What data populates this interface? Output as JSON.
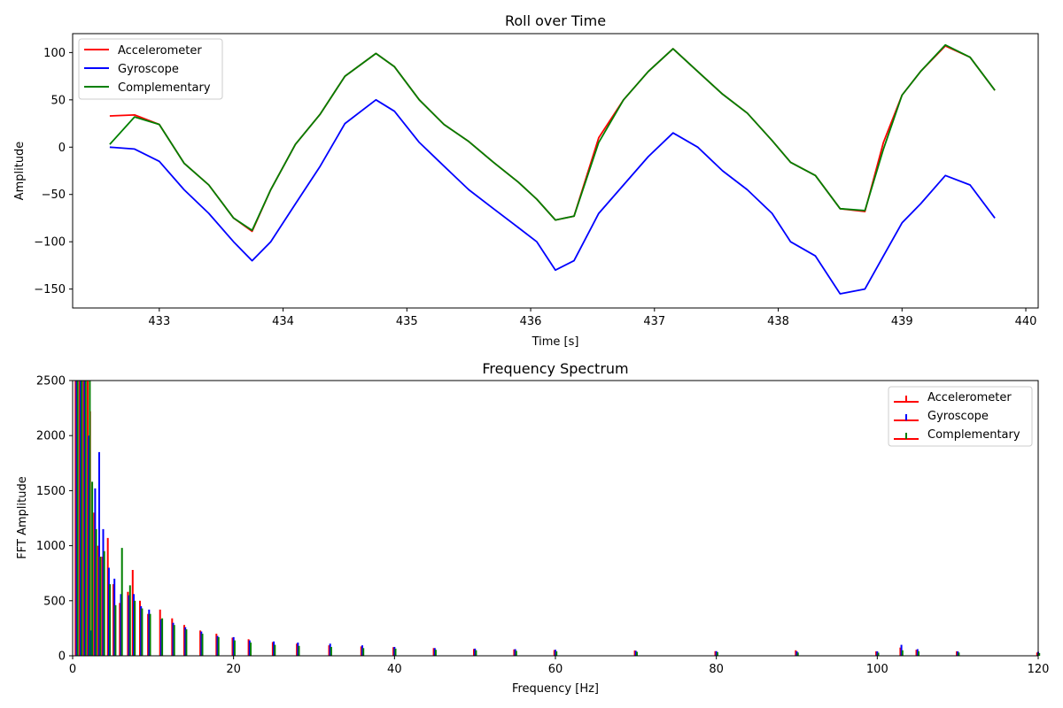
{
  "colors": {
    "accelerometer": "#ff0000",
    "gyroscope": "#0000ff",
    "complementary": "#008000"
  },
  "chart_data": [
    {
      "type": "line",
      "title": "Roll over Time",
      "xlabel": "Time [s]",
      "ylabel": "Amplitude",
      "xlim": [
        432.3,
        440.1
      ],
      "ylim": [
        -170,
        120
      ],
      "xticks": [
        433,
        434,
        435,
        436,
        437,
        438,
        439,
        440
      ],
      "yticks": [
        -150,
        -100,
        -50,
        0,
        50,
        100
      ],
      "grid": false,
      "legend": "upper left",
      "x": [
        432.6,
        432.8,
        433.0,
        433.2,
        433.4,
        433.6,
        433.75,
        433.9,
        434.1,
        434.3,
        434.5,
        434.75,
        434.9,
        435.1,
        435.3,
        435.5,
        435.7,
        435.9,
        436.05,
        436.2,
        436.35,
        436.55,
        436.75,
        436.95,
        437.15,
        437.35,
        437.55,
        437.75,
        437.95,
        438.1,
        438.3,
        438.5,
        438.7,
        438.85,
        439.0,
        439.15,
        439.35,
        439.55,
        439.75
      ],
      "series": [
        {
          "name": "Accelerometer",
          "color": "#ff0000",
          "values": [
            33,
            34,
            24,
            -17,
            -40,
            -75,
            -89,
            -45,
            3,
            35,
            75,
            99,
            85,
            50,
            24,
            6,
            -16,
            -37,
            -55,
            -77,
            -73,
            10,
            50,
            80,
            104,
            80,
            56,
            36,
            7,
            -16,
            -30,
            -65,
            -68,
            5,
            55,
            80,
            107,
            95,
            60
          ]
        },
        {
          "name": "Gyroscope",
          "color": "#0000ff",
          "values": [
            0,
            -2,
            -15,
            -45,
            -70,
            -100,
            -120,
            -100,
            -60,
            -20,
            25,
            50,
            38,
            5,
            -20,
            -45,
            -65,
            -85,
            -100,
            -130,
            -120,
            -70,
            -40,
            -10,
            15,
            0,
            -25,
            -45,
            -70,
            -100,
            -115,
            -155,
            -150,
            -115,
            -80,
            -60,
            -30,
            -40,
            -75
          ]
        },
        {
          "name": "Complementary",
          "color": "#008000",
          "values": [
            3,
            32,
            24,
            -17,
            -40,
            -75,
            -88,
            -45,
            3,
            35,
            75,
            99,
            85,
            50,
            24,
            6,
            -16,
            -37,
            -55,
            -77,
            -73,
            5,
            50,
            80,
            104,
            80,
            56,
            36,
            7,
            -16,
            -30,
            -65,
            -67,
            -2,
            55,
            80,
            108,
            95,
            60
          ]
        }
      ]
    },
    {
      "type": "bar",
      "title": "Frequency Spectrum",
      "xlabel": "Frequency [Hz]",
      "ylabel": "FFT Amplitude",
      "xlim": [
        0,
        120
      ],
      "ylim": [
        0,
        2500
      ],
      "xticks": [
        0,
        20,
        40,
        60,
        80,
        100,
        120
      ],
      "yticks": [
        0,
        500,
        1000,
        1500,
        2000,
        2500
      ],
      "grid": false,
      "legend": "upper right",
      "x": [
        0.5,
        1.0,
        1.5,
        2.0,
        2.3,
        2.8,
        3.3,
        3.8,
        4.5,
        5.2,
        6.0,
        7.0,
        7.6,
        8.5,
        9.5,
        11,
        12.5,
        14,
        16,
        18,
        20,
        22,
        25,
        28,
        32,
        36,
        40,
        45,
        50,
        55,
        60,
        70,
        80,
        90,
        100,
        103,
        105,
        110,
        120
      ],
      "series": [
        {
          "name": "Accelerometer",
          "color": "#ff0000",
          "values": [
            2500,
            2500,
            2500,
            2500,
            2220,
            1300,
            1000,
            900,
            1070,
            650,
            480,
            580,
            780,
            500,
            380,
            420,
            340,
            280,
            230,
            200,
            165,
            150,
            125,
            110,
            95,
            85,
            78,
            70,
            62,
            58,
            52,
            48,
            42,
            50,
            40,
            75,
            55,
            40,
            30
          ]
        },
        {
          "name": "Gyroscope",
          "color": "#0000ff",
          "values": [
            2500,
            2500,
            2500,
            2000,
            230,
            1520,
            1850,
            1150,
            800,
            700,
            560,
            550,
            560,
            450,
            420,
            330,
            300,
            260,
            220,
            180,
            170,
            140,
            130,
            120,
            110,
            95,
            80,
            70,
            65,
            60,
            55,
            45,
            42,
            40,
            40,
            100,
            60,
            40,
            35
          ]
        },
        {
          "name": "Complementary",
          "color": "#008000",
          "values": [
            2500,
            2500,
            2500,
            2500,
            1580,
            1150,
            900,
            950,
            650,
            460,
            980,
            640,
            500,
            430,
            380,
            340,
            280,
            240,
            200,
            170,
            140,
            120,
            100,
            90,
            80,
            70,
            65,
            55,
            50,
            45,
            40,
            36,
            33,
            30,
            28,
            50,
            40,
            30,
            25
          ]
        }
      ]
    }
  ]
}
